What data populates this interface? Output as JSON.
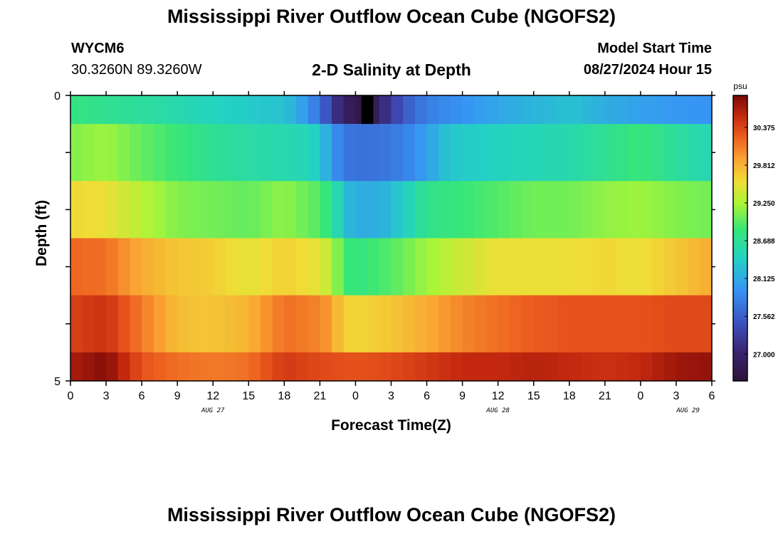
{
  "page": {
    "title": "Mississippi River Outflow Ocean Cube (NGOFS2)",
    "station_id": "WYCM6",
    "station_coords": "30.3260N  89.3260W",
    "plot_title": "2-D Salinity at Depth",
    "model_start_label": "Model Start Time",
    "model_start_value": "08/27/2024 Hour 15",
    "footer_title": "Mississippi River Outflow Ocean Cube (NGOFS2)"
  },
  "chart_data": {
    "type": "heatmap",
    "title": "2-D Salinity at Depth",
    "xlabel": "Forecast Time(Z)",
    "ylabel": "Depth (ft)",
    "x_tick_labels": [
      "0",
      "3",
      "6",
      "9",
      "12",
      "15",
      "18",
      "21",
      "0",
      "3",
      "6",
      "9",
      "12",
      "15",
      "18",
      "21",
      "0",
      "3",
      "6"
    ],
    "x_range_hours": [
      0,
      54
    ],
    "date_labels": [
      {
        "label": "AUG 27",
        "hour": 12
      },
      {
        "label": "AUG 28",
        "hour": 36
      },
      {
        "label": "AUG 29",
        "hour": 52
      }
    ],
    "y_tick_labels": [
      "0",
      "5"
    ],
    "y_range": [
      0,
      5
    ],
    "y_inverted": true,
    "colorbar": {
      "unit": "psu",
      "ticks": [
        "27.000",
        "27.562",
        "28.125",
        "28.688",
        "29.250",
        "29.812",
        "30.375"
      ],
      "min": 26.6,
      "max": 30.85
    },
    "depth_layers": [
      {
        "top": 0.0,
        "bottom": 0.5,
        "keys": [
          [
            0,
            28.8
          ],
          [
            3,
            28.72
          ],
          [
            6,
            28.65
          ],
          [
            9,
            28.55
          ],
          [
            12,
            28.45
          ],
          [
            15,
            28.38
          ],
          [
            18,
            28.3
          ],
          [
            19,
            28.15
          ],
          [
            20,
            27.95
          ],
          [
            21,
            27.7
          ],
          [
            22.5,
            27.1
          ],
          [
            24,
            26.75
          ],
          [
            25,
            26.7
          ],
          [
            26,
            27.0
          ],
          [
            28,
            27.5
          ],
          [
            30,
            27.8
          ],
          [
            33,
            27.95
          ],
          [
            36,
            28.1
          ],
          [
            39,
            28.2
          ],
          [
            42,
            28.3
          ],
          [
            45,
            28.15
          ],
          [
            48,
            28.05
          ],
          [
            51,
            28.0
          ],
          [
            54,
            27.95
          ]
        ]
      },
      {
        "top": 0.5,
        "bottom": 1.5,
        "keys": [
          [
            0,
            29.1
          ],
          [
            3,
            29.2
          ],
          [
            6,
            29.0
          ],
          [
            9,
            28.85
          ],
          [
            12,
            28.7
          ],
          [
            15,
            28.6
          ],
          [
            18,
            28.55
          ],
          [
            20,
            28.5
          ],
          [
            21,
            28.35
          ],
          [
            22,
            28.0
          ],
          [
            23,
            27.75
          ],
          [
            24,
            27.7
          ],
          [
            26,
            27.72
          ],
          [
            28,
            27.8
          ],
          [
            30,
            28.05
          ],
          [
            32,
            28.35
          ],
          [
            36,
            28.45
          ],
          [
            39,
            28.5
          ],
          [
            42,
            28.55
          ],
          [
            45,
            28.7
          ],
          [
            48,
            28.85
          ],
          [
            51,
            28.65
          ],
          [
            54,
            28.5
          ]
        ]
      },
      {
        "top": 1.5,
        "bottom": 2.5,
        "keys": [
          [
            0,
            29.6
          ],
          [
            3,
            29.55
          ],
          [
            6,
            29.3
          ],
          [
            9,
            29.1
          ],
          [
            12,
            29.05
          ],
          [
            15,
            29.0
          ],
          [
            18,
            29.15
          ],
          [
            21,
            28.95
          ],
          [
            22,
            28.75
          ],
          [
            23,
            28.3
          ],
          [
            24,
            28.15
          ],
          [
            26,
            28.15
          ],
          [
            28,
            28.4
          ],
          [
            30,
            28.75
          ],
          [
            33,
            28.85
          ],
          [
            36,
            28.95
          ],
          [
            39,
            29.05
          ],
          [
            42,
            29.05
          ],
          [
            45,
            29.15
          ],
          [
            48,
            29.2
          ],
          [
            51,
            29.1
          ],
          [
            54,
            29.05
          ]
        ]
      },
      {
        "top": 2.5,
        "bottom": 3.5,
        "keys": [
          [
            0,
            30.2
          ],
          [
            3,
            30.15
          ],
          [
            6,
            29.85
          ],
          [
            9,
            29.7
          ],
          [
            12,
            29.65
          ],
          [
            15,
            29.5
          ],
          [
            18,
            29.65
          ],
          [
            21,
            29.5
          ],
          [
            22,
            29.3
          ],
          [
            23,
            28.9
          ],
          [
            24,
            28.8
          ],
          [
            27,
            28.95
          ],
          [
            30,
            29.2
          ],
          [
            33,
            29.4
          ],
          [
            36,
            29.55
          ],
          [
            39,
            29.55
          ],
          [
            42,
            29.55
          ],
          [
            45,
            29.6
          ],
          [
            48,
            29.55
          ],
          [
            51,
            29.7
          ],
          [
            54,
            29.85
          ]
        ]
      },
      {
        "top": 3.5,
        "bottom": 4.5,
        "keys": [
          [
            0,
            30.4
          ],
          [
            3,
            30.5
          ],
          [
            6,
            30.1
          ],
          [
            9,
            29.75
          ],
          [
            12,
            29.7
          ],
          [
            15,
            29.8
          ],
          [
            18,
            30.15
          ],
          [
            21,
            30.05
          ],
          [
            22,
            29.9
          ],
          [
            23,
            29.65
          ],
          [
            24,
            29.6
          ],
          [
            27,
            29.7
          ],
          [
            30,
            29.85
          ],
          [
            33,
            30.05
          ],
          [
            36,
            30.15
          ],
          [
            39,
            30.25
          ],
          [
            42,
            30.3
          ],
          [
            45,
            30.3
          ],
          [
            48,
            30.3
          ],
          [
            51,
            30.35
          ],
          [
            54,
            30.35
          ]
        ]
      },
      {
        "top": 4.5,
        "bottom": 5.0,
        "keys": [
          [
            0,
            30.65
          ],
          [
            3,
            30.8
          ],
          [
            6,
            30.3
          ],
          [
            9,
            30.15
          ],
          [
            12,
            30.1
          ],
          [
            15,
            30.15
          ],
          [
            18,
            30.45
          ],
          [
            21,
            30.35
          ],
          [
            24,
            30.3
          ],
          [
            27,
            30.35
          ],
          [
            30,
            30.45
          ],
          [
            33,
            30.55
          ],
          [
            36,
            30.55
          ],
          [
            39,
            30.6
          ],
          [
            42,
            30.55
          ],
          [
            45,
            30.5
          ],
          [
            48,
            30.55
          ],
          [
            51,
            30.7
          ],
          [
            54,
            30.75
          ]
        ]
      }
    ],
    "marked_cell": {
      "hour": 25,
      "depth_top": 0,
      "depth_bottom": 0.5
    }
  }
}
